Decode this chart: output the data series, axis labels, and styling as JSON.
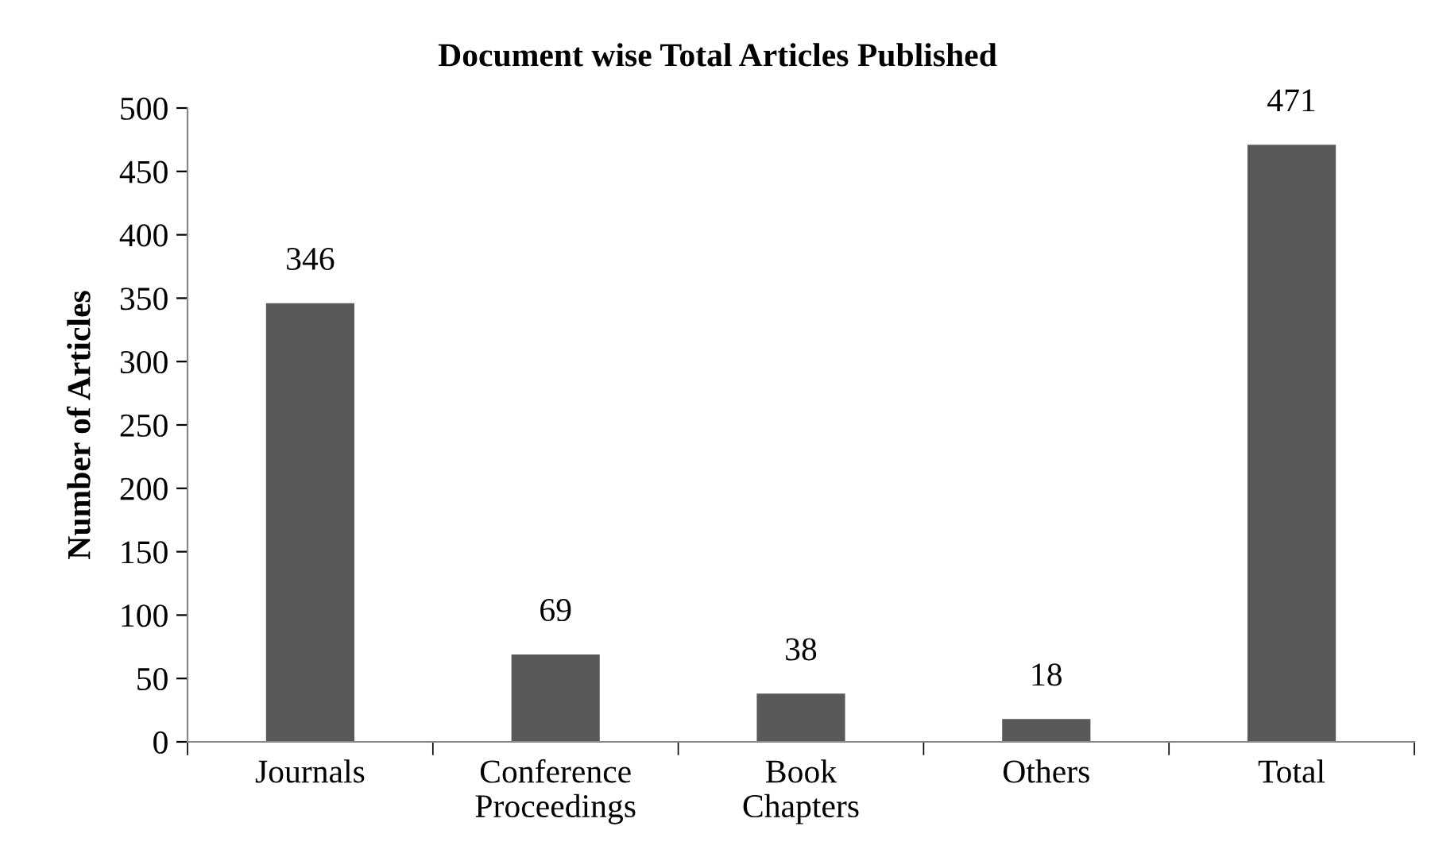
{
  "chart_data": {
    "type": "bar",
    "title": "Document wise Total Articles Published",
    "ylabel": "Number of Articles",
    "categories": [
      "Journals",
      "Conference\nProceedings",
      "Book\nChapters",
      "Others",
      "Total"
    ],
    "values": [
      346,
      69,
      38,
      18,
      471
    ],
    "color": "#595959",
    "ylim": [
      0,
      500
    ],
    "yticks": [
      0,
      50,
      100,
      150,
      200,
      250,
      300,
      350,
      400,
      450,
      500
    ],
    "grid": false,
    "legend": false,
    "data_labels": true
  }
}
